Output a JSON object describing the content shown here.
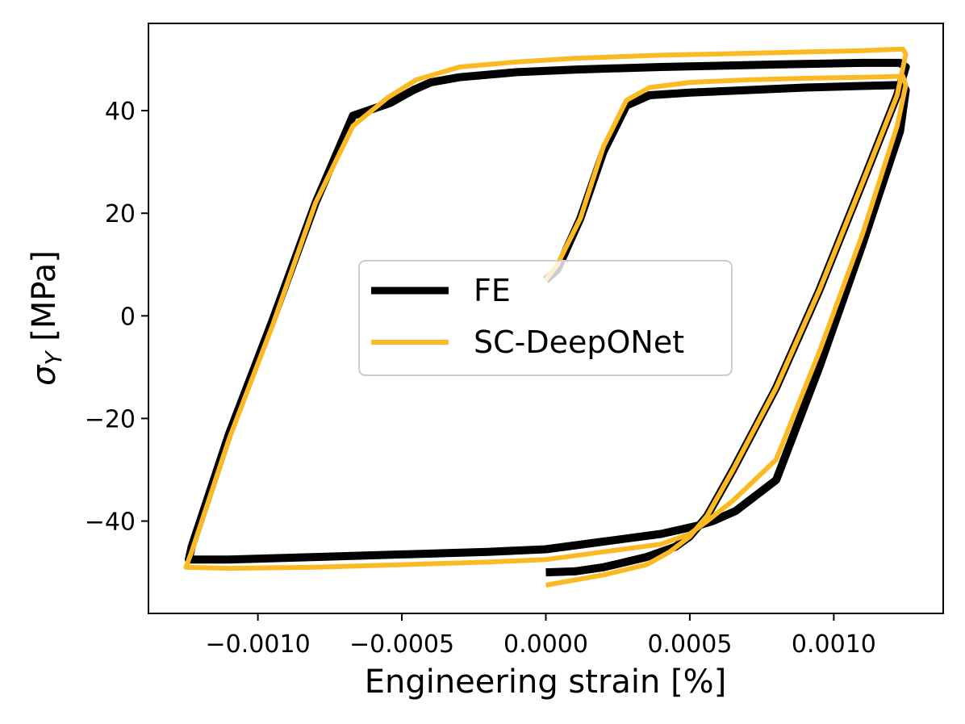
{
  "chart_data": {
    "type": "line",
    "title": "",
    "xlabel": "Engineering strain [%]",
    "ylabel_symbol": "σ",
    "ylabel_subscript": "Y",
    "ylabel_unit": " [MPa]",
    "xlim": [
      -0.00138,
      0.00138
    ],
    "ylim": [
      -58,
      57
    ],
    "x_ticks": [
      -0.001,
      -0.0005,
      0,
      0.0005,
      0.001
    ],
    "x_tick_labels": [
      "−0.0010",
      "−0.0005",
      "0.0000",
      "0.0005",
      "0.0010"
    ],
    "y_ticks": [
      -40,
      -20,
      0,
      20,
      40
    ],
    "y_tick_labels": [
      "−40",
      "−20",
      "0",
      "20",
      "40"
    ],
    "grid": false,
    "legend_position": "center",
    "series": [
      {
        "name": "FE",
        "color": "#000000",
        "x": [
          0.0,
          4e-05,
          0.00012,
          0.0002,
          0.00028,
          0.00036,
          0.0005,
          0.0007,
          0.0009,
          0.0011,
          0.00124,
          0.00125,
          0.00123,
          0.0011,
          0.00095,
          0.0008,
          0.00066,
          0.00058,
          0.00052,
          0.0004,
          0.0002,
          0.0,
          -0.0002,
          -0.0005,
          -0.0008,
          -0.0011,
          -0.00124,
          -0.00123,
          -0.0011,
          -0.00095,
          -0.0008,
          -0.00067,
          -0.00054,
          -0.00046,
          -0.0004,
          -0.0003,
          -0.0001,
          0.0001,
          0.0004,
          0.0008,
          0.0011,
          0.00123,
          0.00125,
          0.00122,
          0.0011,
          0.00095,
          0.0008,
          0.00065,
          0.00056,
          0.0005,
          0.00045,
          0.00035,
          0.0002,
          0.0001,
          0.0
        ],
        "y": [
          7,
          9,
          19,
          32,
          41,
          43,
          43.5,
          44,
          44.5,
          44.8,
          45,
          44,
          36,
          14,
          -10,
          -32,
          -38,
          -40,
          -41,
          -42.5,
          -44,
          -45.5,
          -46,
          -46.5,
          -47,
          -47.5,
          -47.5,
          -45,
          -23,
          -1,
          22,
          39,
          41.5,
          44,
          45.5,
          46.5,
          47.5,
          48,
          48.5,
          49,
          49.3,
          49.3,
          48.5,
          43,
          26,
          5,
          -14,
          -30,
          -39,
          -43,
          -45,
          -47,
          -49,
          -49.8,
          -50
        ]
      },
      {
        "name": "SC-DeepONet",
        "color": "#fbba23",
        "x": [
          0.0,
          4e-05,
          0.00012,
          0.0002,
          0.00028,
          0.00036,
          0.0005,
          0.0007,
          0.0009,
          0.0011,
          0.00124,
          0.00125,
          0.00122,
          0.0011,
          0.00095,
          0.0008,
          0.00065,
          0.00056,
          0.0005,
          0.0004,
          0.0002,
          0.0,
          -0.0002,
          -0.0005,
          -0.0008,
          -0.0011,
          -0.00125,
          -0.00123,
          -0.0011,
          -0.00095,
          -0.0008,
          -0.00067,
          -0.00055,
          -0.00045,
          -0.0003,
          -0.0001,
          0.0001,
          0.0004,
          0.0008,
          0.0011,
          0.00124,
          0.00125,
          0.00122,
          0.0011,
          0.00095,
          0.0008,
          0.00065,
          0.00056,
          0.0005,
          0.00043,
          0.00035,
          0.0002,
          0.0001,
          0.0
        ],
        "y": [
          7,
          10,
          19,
          33,
          42,
          44.5,
          45.5,
          46,
          46.3,
          46.5,
          46.7,
          45,
          37,
          16,
          -7,
          -28,
          -36,
          -40,
          -42.5,
          -44.5,
          -46,
          -47.5,
          -48,
          -48.5,
          -49,
          -49.2,
          -49,
          -46,
          -24,
          -2,
          22,
          37,
          42.5,
          46,
          48.5,
          49.5,
          50.2,
          50.8,
          51.3,
          51.7,
          52,
          51,
          43,
          26,
          5,
          -14,
          -30,
          -39,
          -43,
          -46,
          -48.5,
          -50.5,
          -51.5,
          -52.5
        ]
      }
    ]
  }
}
